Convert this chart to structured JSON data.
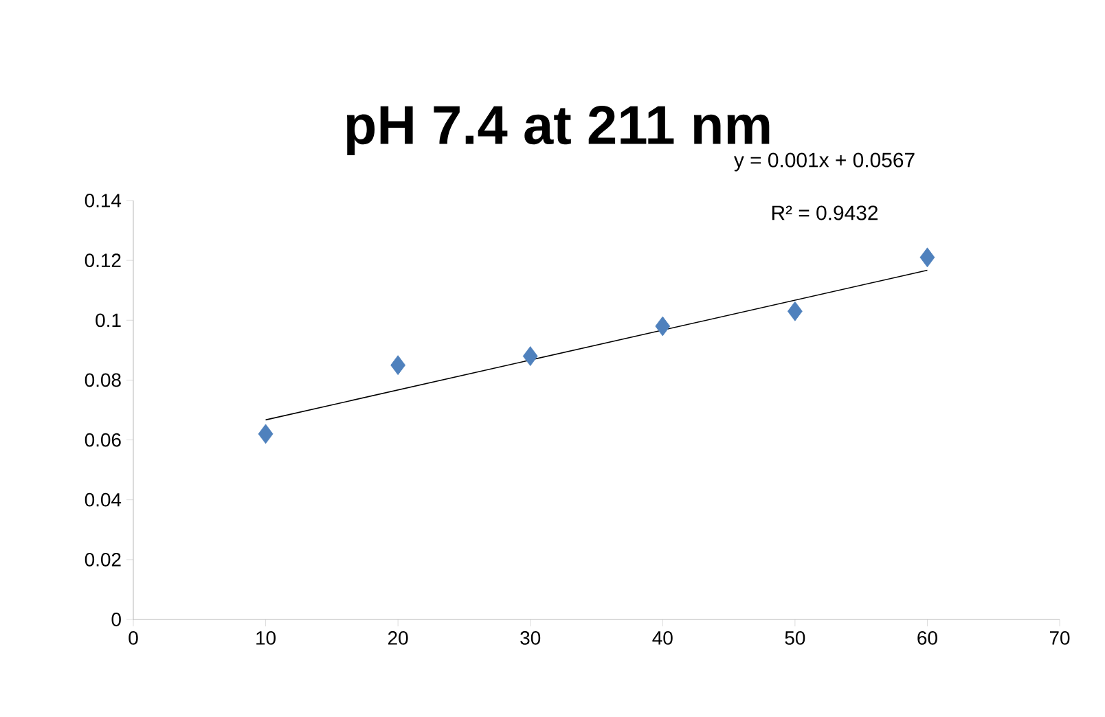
{
  "chart_data": {
    "type": "scatter",
    "title": "pH 7.4 at 211 nm",
    "annotations": [
      "y = 0.001x + 0.0567",
      "R² = 0.9432"
    ],
    "series": [
      {
        "color": "#4f81bd",
        "marker": "diamond",
        "x": [
          10,
          20,
          30,
          40,
          50,
          60
        ],
        "values": [
          0.062,
          0.085,
          0.088,
          0.098,
          0.103,
          0.121
        ]
      },
      {
        "type": "line",
        "color": "#000000",
        "marker": "none",
        "line_style": "solid",
        "x": [
          10,
          60
        ],
        "values": [
          0.0667,
          0.1167
        ]
      }
    ],
    "xlim": [
      0,
      70
    ],
    "xticks": [
      0,
      10,
      20,
      30,
      40,
      50,
      60,
      70
    ],
    "ylim": [
      0,
      0.14
    ],
    "yticks": [
      0,
      0.02,
      0.04,
      0.06,
      0.08,
      0.1,
      0.12,
      0.14
    ],
    "grid": false
  }
}
